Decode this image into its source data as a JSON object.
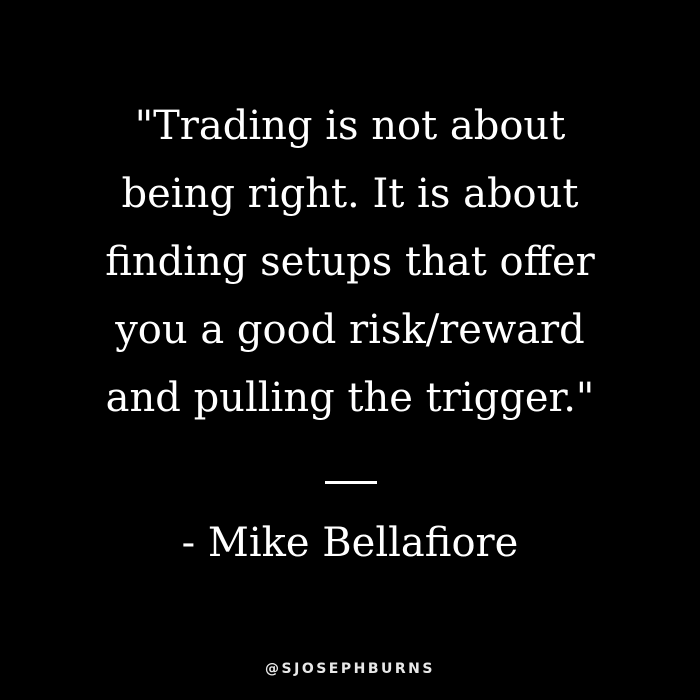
{
  "quote": {
    "lines": [
      "\"Trading is not about",
      "being right. It is about",
      "finding setups that offer",
      "you a good risk/reward",
      "and pulling the trigger.\""
    ]
  },
  "author": {
    "name": "- Mike Bellafiore"
  },
  "footer": {
    "handle": "@SJOSEPHBURNS"
  },
  "colors": {
    "background": "#000000",
    "text": "#ffffff"
  }
}
